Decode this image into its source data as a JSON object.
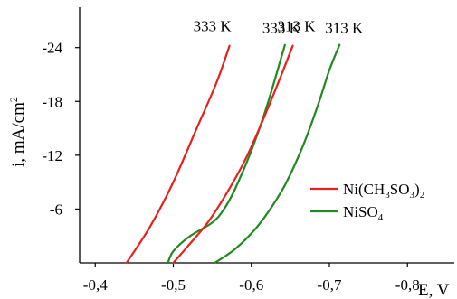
{
  "chart_data": {
    "type": "line",
    "xlabel": "E, V",
    "ylabel": "i, mA/cm",
    "ylabel_sup": "2",
    "xlim": [
      -0.38,
      -0.86
    ],
    "ylim": [
      0,
      -28.5
    ],
    "xticks": [
      -0.4,
      -0.5,
      -0.6,
      -0.7,
      -0.8
    ],
    "xtick_labels": [
      "-0,4",
      "-0,5",
      "-0,6",
      "-0,7",
      "-0,8"
    ],
    "yticks": [
      -6,
      -12,
      -18,
      -24
    ],
    "ytick_labels": [
      "-6",
      "-12",
      "-18",
      "-24"
    ],
    "grid": false,
    "legend_position": "right",
    "legend": [
      {
        "color": "#e8211d",
        "parts": [
          {
            "t": "Ni(CH"
          },
          {
            "t": "3",
            "sub": true
          },
          {
            "t": "SO"
          },
          {
            "t": "3",
            "sub": true
          },
          {
            "t": ")"
          },
          {
            "t": "2",
            "sub": true
          }
        ]
      },
      {
        "color": "#1f8a1f",
        "parts": [
          {
            "t": "NiSO"
          },
          {
            "t": "4",
            "sub": true
          }
        ]
      }
    ],
    "series": [
      {
        "color": "#e8211d",
        "label": "333 K",
        "points": [
          [
            -0.44,
            0
          ],
          [
            -0.47,
            -4
          ],
          [
            -0.5,
            -9
          ],
          [
            -0.53,
            -15
          ],
          [
            -0.555,
            -20
          ],
          [
            -0.572,
            -24.2
          ]
        ]
      },
      {
        "color": "#1f8a1f",
        "label": "333 K",
        "points": [
          [
            -0.493,
            0
          ],
          [
            -0.5,
            -1.3
          ],
          [
            -0.52,
            -2.9
          ],
          [
            -0.55,
            -4.5
          ],
          [
            -0.565,
            -6
          ],
          [
            -0.58,
            -8.4
          ],
          [
            -0.6,
            -12.5
          ],
          [
            -0.62,
            -17.5
          ],
          [
            -0.64,
            -23.4
          ],
          [
            -0.643,
            -24.3
          ]
        ]
      },
      {
        "color": "#e8211d",
        "label": "313 K",
        "points": [
          [
            -0.5,
            0
          ],
          [
            -0.52,
            -2
          ],
          [
            -0.545,
            -4.6
          ],
          [
            -0.57,
            -8
          ],
          [
            -0.595,
            -12
          ],
          [
            -0.62,
            -17
          ],
          [
            -0.64,
            -21.3
          ],
          [
            -0.653,
            -24.2
          ]
        ]
      },
      {
        "color": "#1f8a1f",
        "label": "313 K",
        "points": [
          [
            -0.553,
            0
          ],
          [
            -0.58,
            -1.6
          ],
          [
            -0.61,
            -4.3
          ],
          [
            -0.64,
            -8.2
          ],
          [
            -0.665,
            -12.8
          ],
          [
            -0.685,
            -17.5
          ],
          [
            -0.7,
            -21.5
          ],
          [
            -0.713,
            -24.3
          ]
        ]
      }
    ]
  }
}
